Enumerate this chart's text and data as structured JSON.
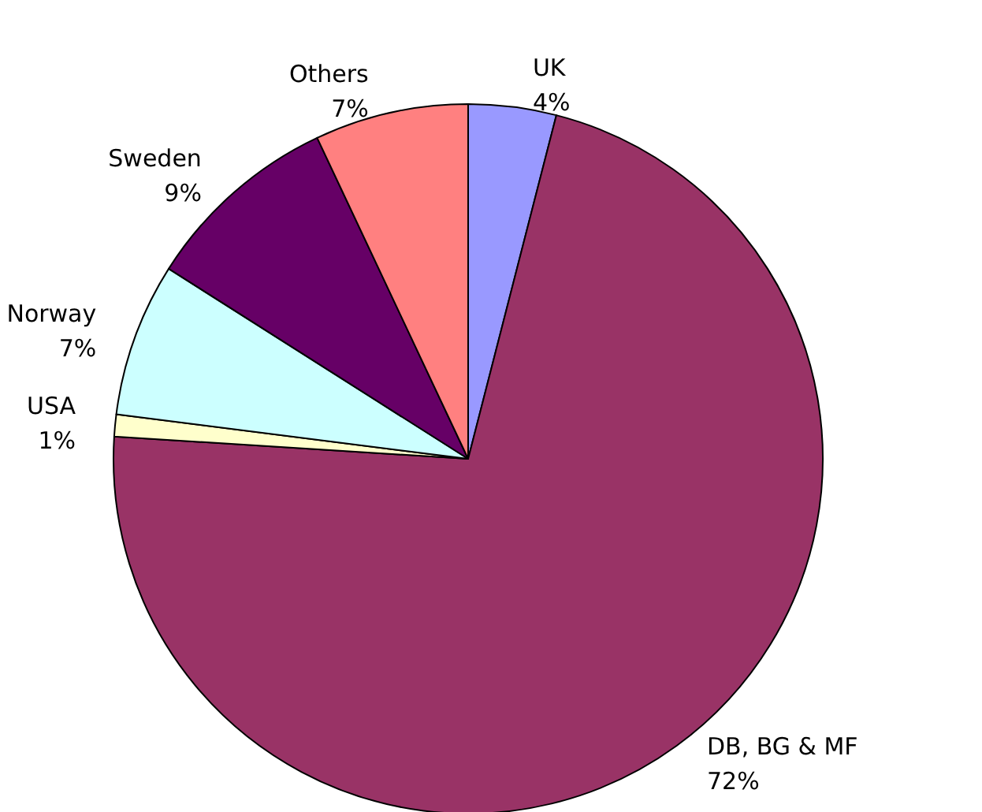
{
  "chart_data": {
    "type": "pie",
    "categories": [
      "UK",
      "DB, BG & MF",
      "USA",
      "Norway",
      "Sweden",
      "Others"
    ],
    "values": [
      4,
      72,
      1,
      7,
      9,
      7
    ],
    "value_labels": [
      "4%",
      "72%",
      "1%",
      "7%",
      "9%",
      "7%"
    ],
    "colors": [
      "#9999ff",
      "#993366",
      "#ffffcc",
      "#ccffff",
      "#660066",
      "#ff8080"
    ],
    "legend": false
  }
}
